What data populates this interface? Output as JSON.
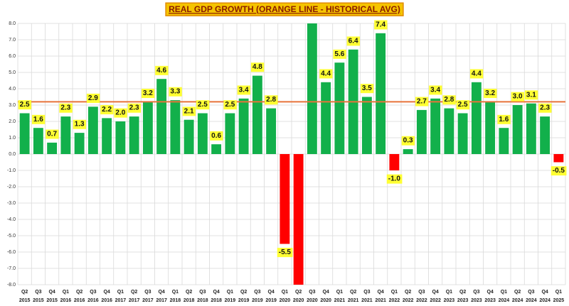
{
  "chart_data": {
    "type": "bar",
    "title": "REAL GDP GROWTH (ORANGE LINE - HISTORICAL AVG)",
    "categories": [
      [
        "Q2",
        "2015"
      ],
      [
        "Q3",
        "2015"
      ],
      [
        "Q4",
        "2015"
      ],
      [
        "Q1",
        "2016"
      ],
      [
        "Q2",
        "2016"
      ],
      [
        "Q3",
        "2016"
      ],
      [
        "Q4",
        "2016"
      ],
      [
        "Q1",
        "2017"
      ],
      [
        "Q2",
        "2017"
      ],
      [
        "Q3",
        "2017"
      ],
      [
        "Q4",
        "2017"
      ],
      [
        "Q1",
        "2018"
      ],
      [
        "Q2",
        "2018"
      ],
      [
        "Q3",
        "2018"
      ],
      [
        "Q4",
        "2018"
      ],
      [
        "Q1",
        "2019"
      ],
      [
        "Q2",
        "2019"
      ],
      [
        "Q3",
        "2019"
      ],
      [
        "Q4",
        "2019"
      ],
      [
        "Q1",
        "2020"
      ],
      [
        "Q2",
        "2020"
      ],
      [
        "Q3",
        "2020"
      ],
      [
        "Q4",
        "2020"
      ],
      [
        "Q1",
        "2021"
      ],
      [
        "Q2",
        "2021"
      ],
      [
        "Q3",
        "2021"
      ],
      [
        "Q4",
        "2021"
      ],
      [
        "Q1",
        "2022"
      ],
      [
        "Q2",
        "2022"
      ],
      [
        "Q3",
        "2022"
      ],
      [
        "Q4",
        "2022"
      ],
      [
        "Q1",
        "2023"
      ],
      [
        "Q2",
        "2023"
      ],
      [
        "Q3",
        "2023"
      ],
      [
        "Q4",
        "2023"
      ],
      [
        "Q1",
        "2024"
      ],
      [
        "Q2",
        "2024"
      ],
      [
        "Q3",
        "2024"
      ],
      [
        "Q4",
        "2024"
      ],
      [
        "Q1",
        "2025"
      ]
    ],
    "values": [
      2.5,
      1.6,
      0.7,
      2.3,
      1.3,
      2.9,
      2.2,
      2.0,
      2.3,
      3.2,
      4.6,
      3.3,
      2.1,
      2.5,
      0.6,
      2.5,
      3.4,
      4.8,
      2.8,
      -5.5,
      -8,
      8,
      4.4,
      5.6,
      6.4,
      3.5,
      7.4,
      -1.0,
      0.3,
      2.7,
      3.4,
      2.8,
      2.5,
      4.4,
      3.2,
      1.6,
      3.0,
      3.1,
      2.3,
      -0.5
    ],
    "value_labels": [
      "2.5",
      "1.6",
      "0.7",
      "2.3",
      "1.3",
      "2.9",
      "2.2",
      "2.0",
      "2.3",
      "3.2",
      "4.6",
      "3.3",
      "2.1",
      "2.5",
      "0.6",
      "2.5",
      "3.4",
      "4.8",
      "2.8",
      "-5.5",
      null,
      null,
      "4.4",
      "5.6",
      "6.4",
      "3.5",
      "7.4",
      "-1.0",
      "0.3",
      "2.7",
      "3.4",
      "2.8",
      "2.5",
      "4.4",
      "3.2",
      "1.6",
      "3.0",
      "3.1",
      "2.3",
      "-0.5"
    ],
    "color": "#12b04b",
    "negative_color": "#ff0000",
    "reference_line": {
      "value": 3.2,
      "color": "#e8733a"
    },
    "ylim": [
      -8,
      8
    ],
    "yticks": [
      {
        "value": -8,
        "label": "-8.0"
      },
      {
        "value": -7,
        "label": "-7.0"
      },
      {
        "value": -6,
        "label": "-6.0"
      },
      {
        "value": -5,
        "label": "-5.0"
      },
      {
        "value": -4,
        "label": "-4.0"
      },
      {
        "value": -3,
        "label": "-3.0"
      },
      {
        "value": -2,
        "label": "-2.0"
      },
      {
        "value": -1,
        "label": "-1.0"
      },
      {
        "value": 0,
        "label": "0.0"
      },
      {
        "value": 1,
        "label": "1.0"
      },
      {
        "value": 2,
        "label": "2.0"
      },
      {
        "value": 3,
        "label": "3.0"
      },
      {
        "value": 4,
        "label": "4.0"
      },
      {
        "value": 5,
        "label": "5.0"
      },
      {
        "value": 6,
        "label": "6.0"
      },
      {
        "value": 7,
        "label": "7.0"
      },
      {
        "value": 8,
        "label": "8.0"
      }
    ],
    "grid": true
  }
}
